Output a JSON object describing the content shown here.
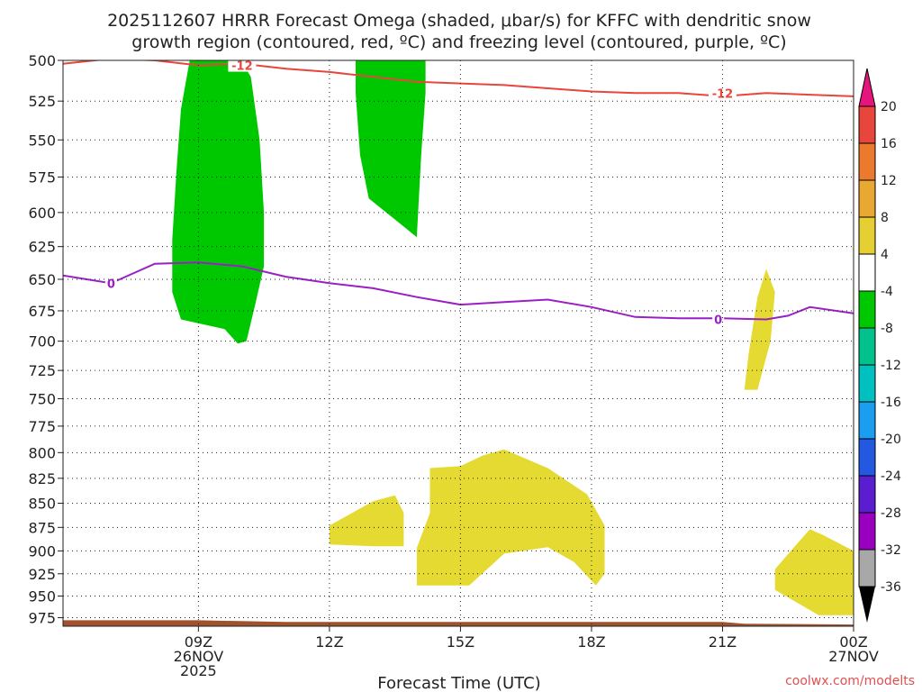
{
  "title_line1": "2025112607 HRRR Forecast Omega (shaded, μbar/s) for KFFC with dendritic snow",
  "title_line2": "growth region (contoured, red, ºC) and freezing level (contoured, purple, ºC)",
  "xlabel": "Forecast Time (UTC)",
  "credit": "coolwx.com/modelts",
  "chart_data": {
    "type": "time-height",
    "x_unit": "hours from 2025-11-26 06Z",
    "xlim": [
      -0.1,
      18.0
    ],
    "ylim": [
      500,
      985
    ],
    "y_scale": "log",
    "y_ticks": [
      500,
      525,
      550,
      575,
      600,
      625,
      650,
      675,
      700,
      725,
      750,
      775,
      800,
      825,
      850,
      875,
      900,
      925,
      950,
      975
    ],
    "x_ticks": [
      {
        "x": 3,
        "lines": [
          "09Z",
          "26NOV",
          "2025"
        ]
      },
      {
        "x": 6,
        "lines": [
          "12Z"
        ]
      },
      {
        "x": 9,
        "lines": [
          "15Z"
        ]
      },
      {
        "x": 12,
        "lines": [
          "18Z"
        ]
      },
      {
        "x": 15,
        "lines": [
          "21Z"
        ]
      },
      {
        "x": 18,
        "lines": [
          "00Z",
          "27NOV"
        ]
      }
    ],
    "grid": "dotted",
    "contour_minus12": {
      "color": "#e8453c",
      "label": "-12",
      "label_at": [
        [
          4.0,
          503
        ],
        [
          15.0,
          520
        ]
      ],
      "points": [
        [
          -0.1,
          502
        ],
        [
          1,
          499
        ],
        [
          2,
          500
        ],
        [
          3,
          503
        ],
        [
          4,
          502
        ],
        [
          5,
          505
        ],
        [
          6,
          507
        ],
        [
          7,
          510
        ],
        [
          8,
          513
        ],
        [
          9,
          514
        ],
        [
          10,
          515
        ],
        [
          11,
          517
        ],
        [
          12,
          519
        ],
        [
          13,
          520
        ],
        [
          14,
          520
        ],
        [
          15,
          522
        ],
        [
          16,
          520
        ],
        [
          17,
          521
        ],
        [
          18,
          522
        ]
      ]
    },
    "contour_freezing": {
      "color": "#9a1fc4",
      "label": "0",
      "label_at": [
        [
          1.0,
          653
        ],
        [
          14.9,
          682
        ]
      ],
      "points": [
        [
          -0.1,
          647
        ],
        [
          1,
          653
        ],
        [
          2,
          638
        ],
        [
          3,
          637
        ],
        [
          4,
          640
        ],
        [
          5,
          648
        ],
        [
          6,
          653
        ],
        [
          7,
          657
        ],
        [
          8,
          664
        ],
        [
          9,
          670
        ],
        [
          10,
          668
        ],
        [
          11,
          666
        ],
        [
          12,
          672
        ],
        [
          13,
          680
        ],
        [
          14,
          681
        ],
        [
          15,
          681
        ],
        [
          16,
          682
        ],
        [
          16.5,
          679
        ],
        [
          17,
          672
        ],
        [
          18,
          677
        ]
      ]
    },
    "shaded_regions": [
      {
        "level": -8,
        "color": "#00c800",
        "points": [
          [
            2.8,
            500
          ],
          [
            3.4,
            497
          ],
          [
            3.9,
            497
          ],
          [
            4.2,
            510
          ],
          [
            4.4,
            550
          ],
          [
            4.5,
            600
          ],
          [
            4.5,
            640
          ],
          [
            4.3,
            670
          ],
          [
            4.1,
            700
          ],
          [
            3.9,
            702
          ],
          [
            3.6,
            690
          ],
          [
            2.6,
            682
          ],
          [
            2.4,
            660
          ],
          [
            2.4,
            620
          ],
          [
            2.5,
            570
          ],
          [
            2.6,
            530
          ]
        ]
      },
      {
        "level": -8,
        "color": "#00c800",
        "points": [
          [
            6.6,
            497
          ],
          [
            8.2,
            497
          ],
          [
            8.2,
            520
          ],
          [
            8.1,
            560
          ],
          [
            8.0,
            618
          ],
          [
            7.5,
            605
          ],
          [
            6.9,
            590
          ],
          [
            6.7,
            560
          ],
          [
            6.6,
            520
          ]
        ]
      },
      {
        "level": 4,
        "color": "#e5da32",
        "points": [
          [
            6.0,
            873
          ],
          [
            7.0,
            848
          ],
          [
            7.5,
            842
          ],
          [
            7.7,
            860
          ],
          [
            7.7,
            895
          ],
          [
            7.0,
            895
          ],
          [
            6.0,
            893
          ]
        ]
      },
      {
        "level": 4,
        "color": "#e5da32",
        "points": [
          [
            8.3,
            815
          ],
          [
            9.0,
            813
          ],
          [
            9.5,
            803
          ],
          [
            10.0,
            797
          ],
          [
            11.0,
            815
          ],
          [
            11.9,
            841
          ],
          [
            12.3,
            873
          ],
          [
            12.3,
            925
          ],
          [
            12.1,
            938
          ],
          [
            11.6,
            912
          ],
          [
            11.0,
            896
          ],
          [
            10.0,
            903
          ],
          [
            9.2,
            938
          ],
          [
            8.0,
            938
          ],
          [
            8.0,
            897
          ],
          [
            8.3,
            860
          ]
        ]
      },
      {
        "level": 4,
        "color": "#e5da32",
        "points": [
          [
            15.5,
            742
          ],
          [
            15.6,
            710
          ],
          [
            15.8,
            664
          ],
          [
            16.0,
            642
          ],
          [
            16.2,
            660
          ],
          [
            16.1,
            700
          ],
          [
            15.8,
            742
          ]
        ]
      },
      {
        "level": 4,
        "color": "#e5da32",
        "points": [
          [
            16.2,
            920
          ],
          [
            16.6,
            898
          ],
          [
            17.0,
            877
          ],
          [
            17.3,
            883
          ],
          [
            18.0,
            900
          ],
          [
            18.0,
            972
          ],
          [
            17.2,
            972
          ],
          [
            16.2,
            943
          ]
        ]
      }
    ],
    "terrain": {
      "color": "#a0522d",
      "points": [
        [
          -0.1,
          978
        ],
        [
          3,
          978
        ],
        [
          5,
          980
        ],
        [
          10,
          980
        ],
        [
          15,
          980
        ],
        [
          15.5,
          982
        ],
        [
          18,
          983
        ]
      ]
    },
    "colorbar": {
      "labels": [
        20,
        16,
        12,
        8,
        4,
        -4,
        -8,
        -12,
        -16,
        -20,
        -24,
        -28,
        -32,
        -36
      ],
      "colors": [
        "#e8453c",
        "#ec7a2e",
        "#e8a832",
        "#e6cf32",
        "#ffffff",
        "#00c800",
        "#00c28a",
        "#00c0c0",
        "#1c9ef0",
        "#2259e0",
        "#5a1ed0",
        "#9a00c0",
        "#a8a8a8"
      ],
      "top_arrow": "#e8147e",
      "bottom_arrow": "#000000"
    }
  }
}
